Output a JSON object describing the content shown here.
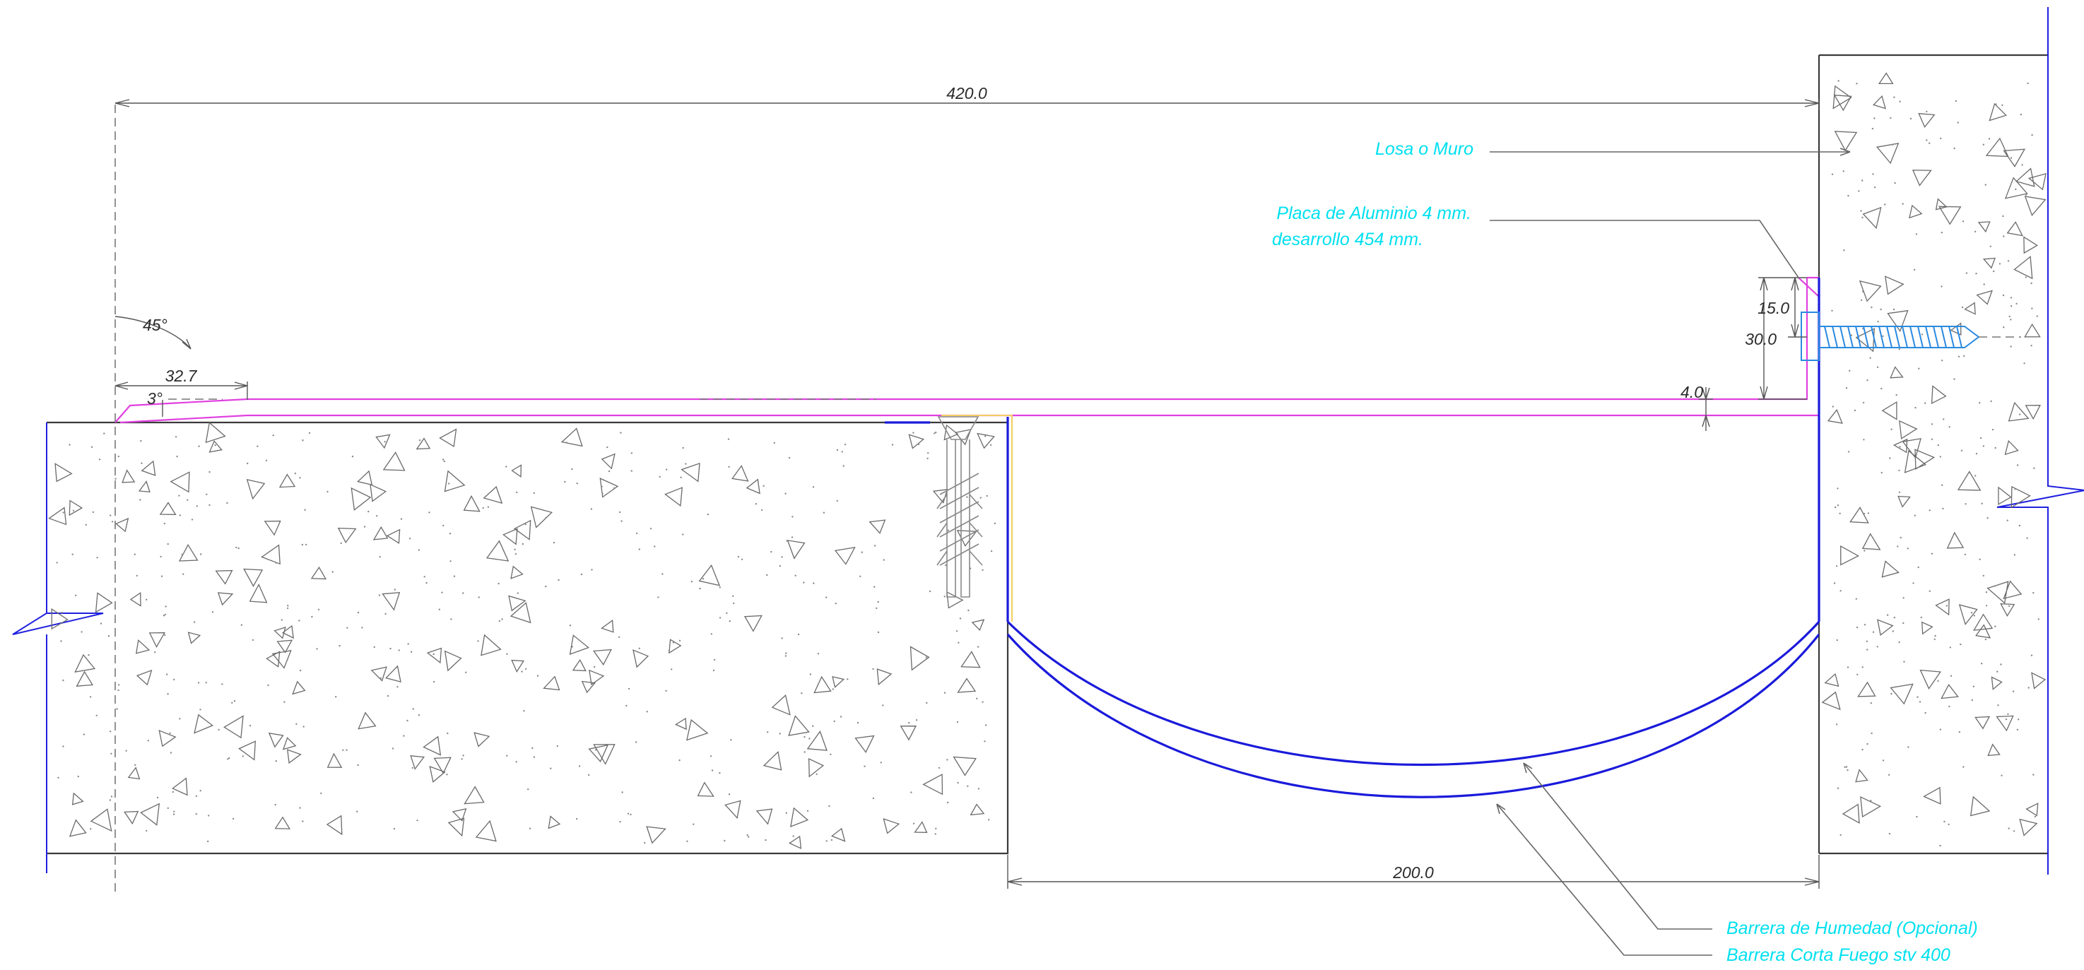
{
  "dimensions": {
    "overall_width": "420.0",
    "joint_gap": "200.0",
    "top_flange": "32.7",
    "bevel_angle": "45°",
    "slope_angle": "3°",
    "screw_depth_upper": "15.0",
    "screw_depth_total": "30.0",
    "plate_thickness": "4.0"
  },
  "annotations": {
    "wall": "Losa o Muro",
    "plate_line1": "Placa de Aluminio 4 mm.",
    "plate_line2": "desarrollo 454 mm.",
    "moisture_barrier": "Barrera de Humedad (Opcional)",
    "fire_barrier": "Barrera Corta Fuego stv 400"
  },
  "colors": {
    "annotation_text": "#00e0f0",
    "concrete_outline": "#3a3a3a",
    "barrier": "#1a1adb",
    "plate": "#e040e0",
    "screw": "#2a8ae0"
  }
}
